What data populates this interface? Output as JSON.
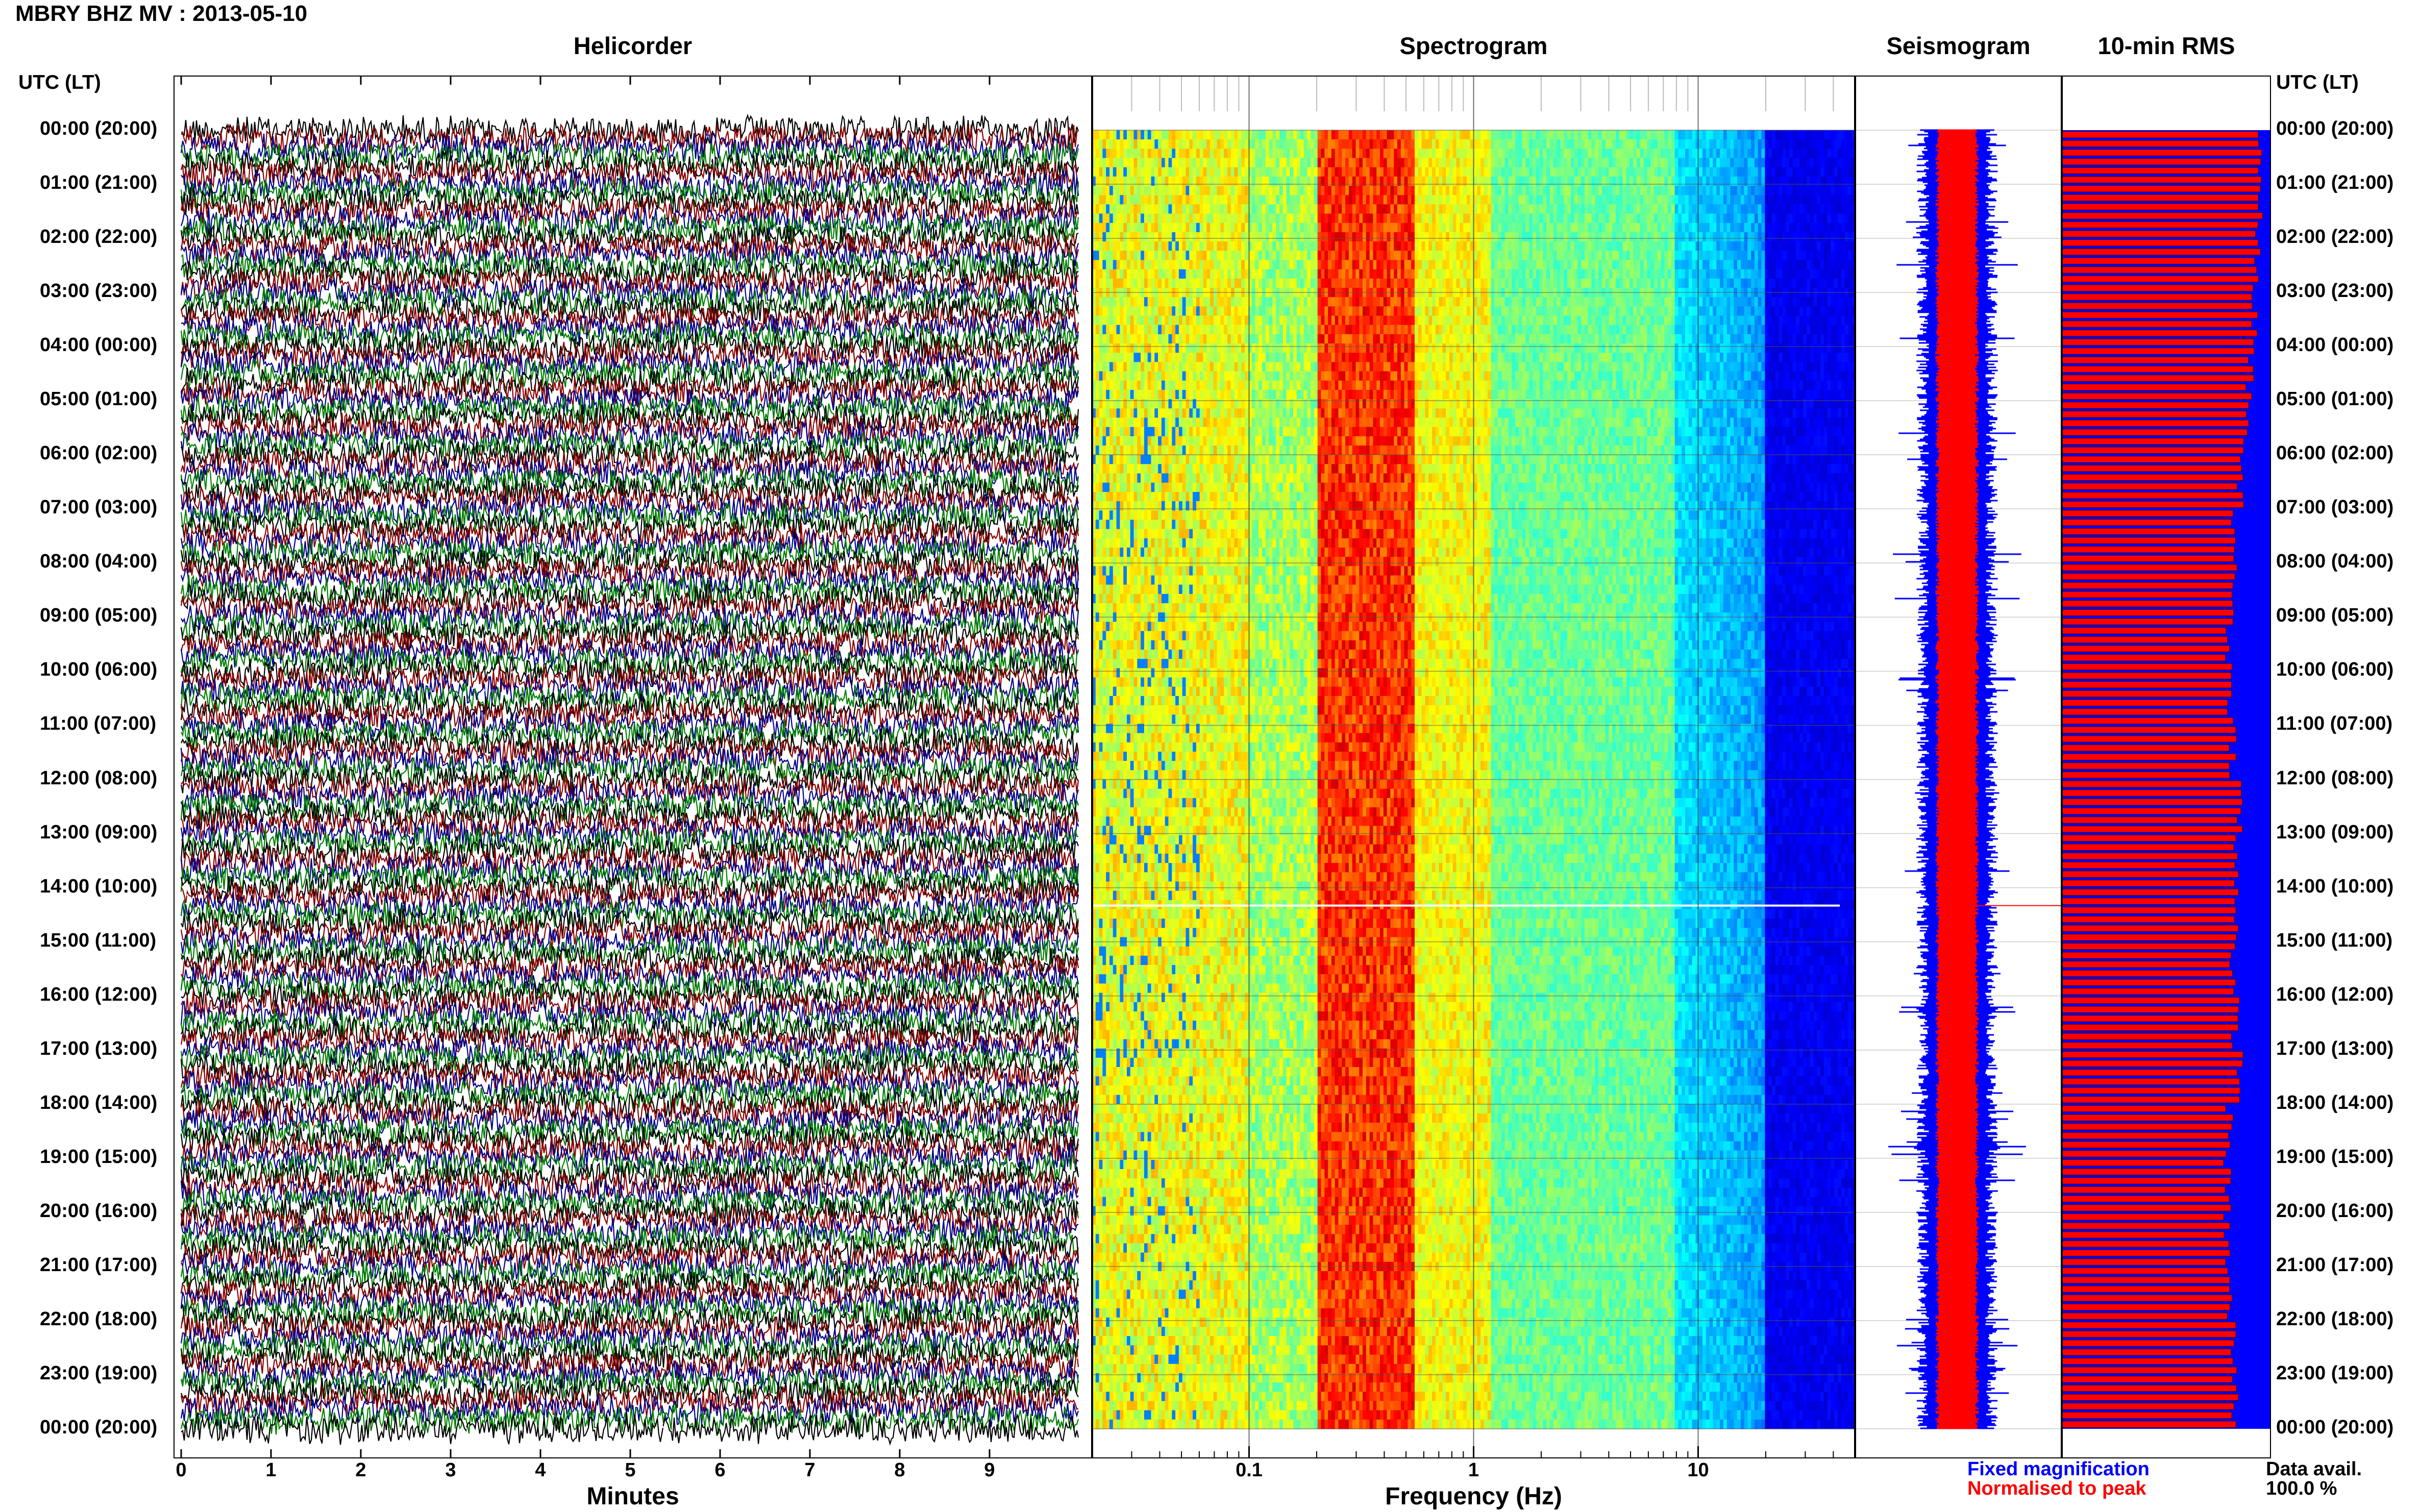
{
  "title": "MBRY BHZ MV : 2013-05-10",
  "panels": {
    "helicorder": "Helicorder",
    "spectrogram": "Spectrogram",
    "seismogram": "Seismogram",
    "rms": "10-min RMS"
  },
  "utc_label_left": "UTC (LT)",
  "utc_label_right": "UTC (LT)",
  "time_labels": [
    "00:00 (20:00)",
    "01:00 (21:00)",
    "02:00 (22:00)",
    "03:00 (23:00)",
    "04:00 (00:00)",
    "05:00 (01:00)",
    "06:00 (02:00)",
    "07:00 (03:00)",
    "08:00 (04:00)",
    "09:00 (05:00)",
    "10:00 (06:00)",
    "11:00 (07:00)",
    "12:00 (08:00)",
    "13:00 (09:00)",
    "14:00 (10:00)",
    "15:00 (11:00)",
    "16:00 (12:00)",
    "17:00 (13:00)",
    "18:00 (14:00)",
    "19:00 (15:00)",
    "20:00 (16:00)",
    "21:00 (17:00)",
    "22:00 (18:00)",
    "23:00 (19:00)",
    "00:00 (20:00)"
  ],
  "minute_ticks": [
    "0",
    "1",
    "2",
    "3",
    "4",
    "5",
    "6",
    "7",
    "8",
    "9"
  ],
  "xlabel_minutes": "Minutes",
  "freq_ticks": [
    "0.1",
    "1",
    "10"
  ],
  "xlabel_freq": "Frequency (Hz)",
  "legend": {
    "fixed": "Fixed magnification",
    "normalised": "Normalised to peak",
    "data_avail_label": "Data avail.",
    "data_avail_value": "100.0 %"
  },
  "colors": {
    "helicorder_traces": [
      "#000000",
      "#8b0000",
      "#00008b",
      "#008000"
    ],
    "fixed_magnification": "#0000ff",
    "normalised_to_peak": "#ff0000",
    "spectrogram_colormap": "jet"
  },
  "chart_data": [
    {
      "type": "line",
      "title": "Helicorder",
      "xlabel": "Minutes",
      "xlim": [
        0,
        10
      ],
      "x_ticks": [
        0,
        1,
        2,
        3,
        4,
        5,
        6,
        7,
        8,
        9
      ],
      "rows_per_hour": 6,
      "hours": 24,
      "trace_colors": [
        "black",
        "darkred",
        "darkblue",
        "green"
      ]
    },
    {
      "type": "heatmap",
      "title": "Spectrogram",
      "xlabel": "Frequency (Hz)",
      "x_scale": "log",
      "xlim": [
        0.02,
        50
      ],
      "x_ticks": [
        0.1,
        1,
        10
      ],
      "dominant_band_hz": [
        0.2,
        0.5
      ],
      "gap_hour_utc": 14.33,
      "colormap": "jet"
    },
    {
      "type": "area",
      "title": "Seismogram",
      "series": [
        {
          "name": "Fixed magnification",
          "color": "blue"
        },
        {
          "name": "Normalised to peak",
          "color": "red"
        }
      ]
    },
    {
      "type": "bar",
      "title": "10-min RMS",
      "orientation": "horizontal",
      "bins_per_hour": 6,
      "hours": 24,
      "series": [
        {
          "name": "Fixed magnification",
          "color": "blue"
        },
        {
          "name": "Normalised to peak",
          "color": "red"
        }
      ],
      "normalised_fraction_by_hour": [
        0.95,
        0.94,
        0.93,
        0.92,
        0.9,
        0.88,
        0.85,
        0.83,
        0.82,
        0.8,
        0.81,
        0.82,
        0.85,
        0.83,
        0.84,
        0.82,
        0.83,
        0.85,
        0.8,
        0.79,
        0.79,
        0.8,
        0.82,
        0.83
      ],
      "data_availability_percent": 100.0
    }
  ]
}
